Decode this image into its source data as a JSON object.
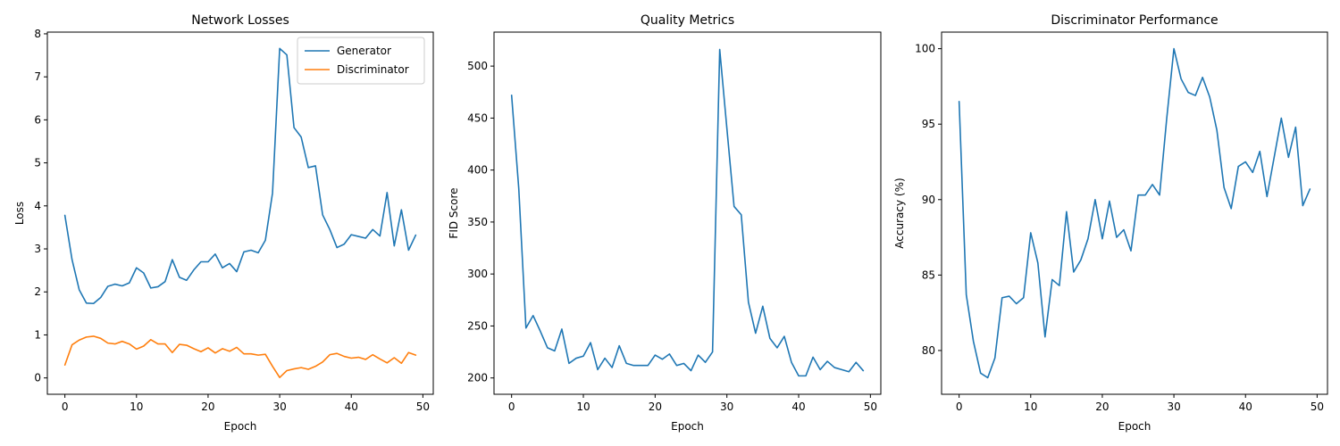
{
  "chart_data": [
    {
      "type": "line",
      "title": "Network Losses",
      "xlabel": "Epoch",
      "ylabel": "Loss",
      "xlim": [
        -2.45,
        51.45
      ],
      "ylim": [
        -0.38,
        8.04
      ],
      "xticks": [
        0,
        10,
        20,
        30,
        40,
        50
      ],
      "yticks": [
        0,
        1,
        2,
        3,
        4,
        5,
        6,
        7,
        8
      ],
      "legend": "top-right",
      "x": [
        0,
        1,
        2,
        3,
        4,
        5,
        6,
        7,
        8,
        9,
        10,
        11,
        12,
        13,
        14,
        15,
        16,
        17,
        18,
        19,
        20,
        21,
        22,
        23,
        24,
        25,
        26,
        27,
        28,
        29,
        30,
        31,
        32,
        33,
        34,
        35,
        36,
        37,
        38,
        39,
        40,
        41,
        42,
        43,
        44,
        45,
        46,
        47,
        48,
        49
      ],
      "series": [
        {
          "name": "Generator",
          "color": "#1f77b4",
          "values": [
            3.78,
            2.75,
            2.05,
            1.74,
            1.73,
            1.87,
            2.13,
            2.18,
            2.14,
            2.21,
            2.56,
            2.44,
            2.09,
            2.12,
            2.24,
            2.75,
            2.34,
            2.27,
            2.51,
            2.7,
            2.7,
            2.88,
            2.56,
            2.66,
            2.47,
            2.93,
            2.97,
            2.91,
            3.2,
            4.3,
            7.66,
            7.51,
            5.82,
            5.6,
            4.89,
            4.93,
            3.79,
            3.45,
            3.03,
            3.11,
            3.33,
            3.29,
            3.25,
            3.45,
            3.3,
            4.31,
            3.07,
            3.91,
            2.97,
            3.32
          ]
        },
        {
          "name": "Discriminator",
          "color": "#ff7f0e",
          "values": [
            0.3,
            0.77,
            0.88,
            0.95,
            0.97,
            0.92,
            0.81,
            0.79,
            0.85,
            0.79,
            0.67,
            0.74,
            0.89,
            0.79,
            0.79,
            0.59,
            0.78,
            0.76,
            0.68,
            0.61,
            0.7,
            0.58,
            0.68,
            0.62,
            0.71,
            0.56,
            0.56,
            0.53,
            0.55,
            0.27,
            0.01,
            0.17,
            0.21,
            0.24,
            0.2,
            0.27,
            0.37,
            0.54,
            0.57,
            0.5,
            0.46,
            0.48,
            0.43,
            0.54,
            0.44,
            0.35,
            0.47,
            0.34,
            0.59,
            0.53
          ]
        }
      ]
    },
    {
      "type": "line",
      "title": "Quality Metrics",
      "xlabel": "Epoch",
      "ylabel": "FID Score",
      "xlim": [
        -2.45,
        51.45
      ],
      "ylim": [
        184.3,
        532.7
      ],
      "xticks": [
        0,
        10,
        20,
        30,
        40,
        50
      ],
      "yticks": [
        200,
        250,
        300,
        350,
        400,
        450,
        500
      ],
      "x": [
        0,
        1,
        2,
        3,
        4,
        5,
        6,
        7,
        8,
        9,
        10,
        11,
        12,
        13,
        14,
        15,
        16,
        17,
        18,
        19,
        20,
        21,
        22,
        23,
        24,
        25,
        26,
        27,
        28,
        29,
        30,
        31,
        32,
        33,
        34,
        35,
        36,
        37,
        38,
        39,
        40,
        41,
        42,
        43,
        44,
        45,
        46,
        47,
        48,
        49
      ],
      "series": [
        {
          "color": "#1f77b4",
          "values": [
            472,
            382,
            248,
            260,
            245,
            229,
            226,
            247,
            214,
            219,
            221,
            234,
            208,
            219,
            210,
            231,
            214,
            212,
            212,
            212,
            222,
            218,
            223,
            212,
            214,
            207,
            222,
            215,
            225,
            516,
            440,
            365,
            357,
            273,
            243,
            269,
            238,
            229,
            240,
            215,
            202,
            202,
            220,
            208,
            216,
            210,
            208,
            206,
            215,
            207
          ]
        }
      ]
    },
    {
      "type": "line",
      "title": "Discriminator Performance",
      "xlabel": "Epoch",
      "ylabel": "Accuracy (%)",
      "xlim": [
        -2.45,
        51.45
      ],
      "ylim": [
        77.1,
        101.1
      ],
      "xticks": [
        0,
        10,
        20,
        30,
        40,
        50
      ],
      "yticks": [
        80,
        85,
        90,
        95,
        100
      ],
      "x": [
        0,
        1,
        2,
        3,
        4,
        5,
        6,
        7,
        8,
        9,
        10,
        11,
        12,
        13,
        14,
        15,
        16,
        17,
        18,
        19,
        20,
        21,
        22,
        23,
        24,
        25,
        26,
        27,
        28,
        29,
        30,
        31,
        32,
        33,
        34,
        35,
        36,
        37,
        38,
        39,
        40,
        41,
        42,
        43,
        44,
        45,
        46,
        47,
        48,
        49
      ],
      "series": [
        {
          "color": "#1f77b4",
          "values": [
            96.5,
            83.7,
            80.6,
            78.5,
            78.2,
            79.5,
            83.5,
            83.6,
            83.1,
            83.5,
            87.8,
            85.8,
            80.9,
            84.7,
            84.3,
            89.2,
            85.2,
            86.0,
            87.4,
            90.0,
            87.4,
            89.9,
            87.5,
            88.0,
            86.6,
            90.3,
            90.3,
            91.0,
            90.3,
            95.4,
            100.0,
            98.0,
            97.1,
            96.9,
            98.1,
            96.8,
            94.6,
            90.8,
            89.4,
            92.2,
            92.5,
            91.8,
            93.2,
            90.2,
            92.8,
            95.4,
            92.8,
            94.8,
            89.6,
            90.7
          ]
        }
      ]
    }
  ]
}
